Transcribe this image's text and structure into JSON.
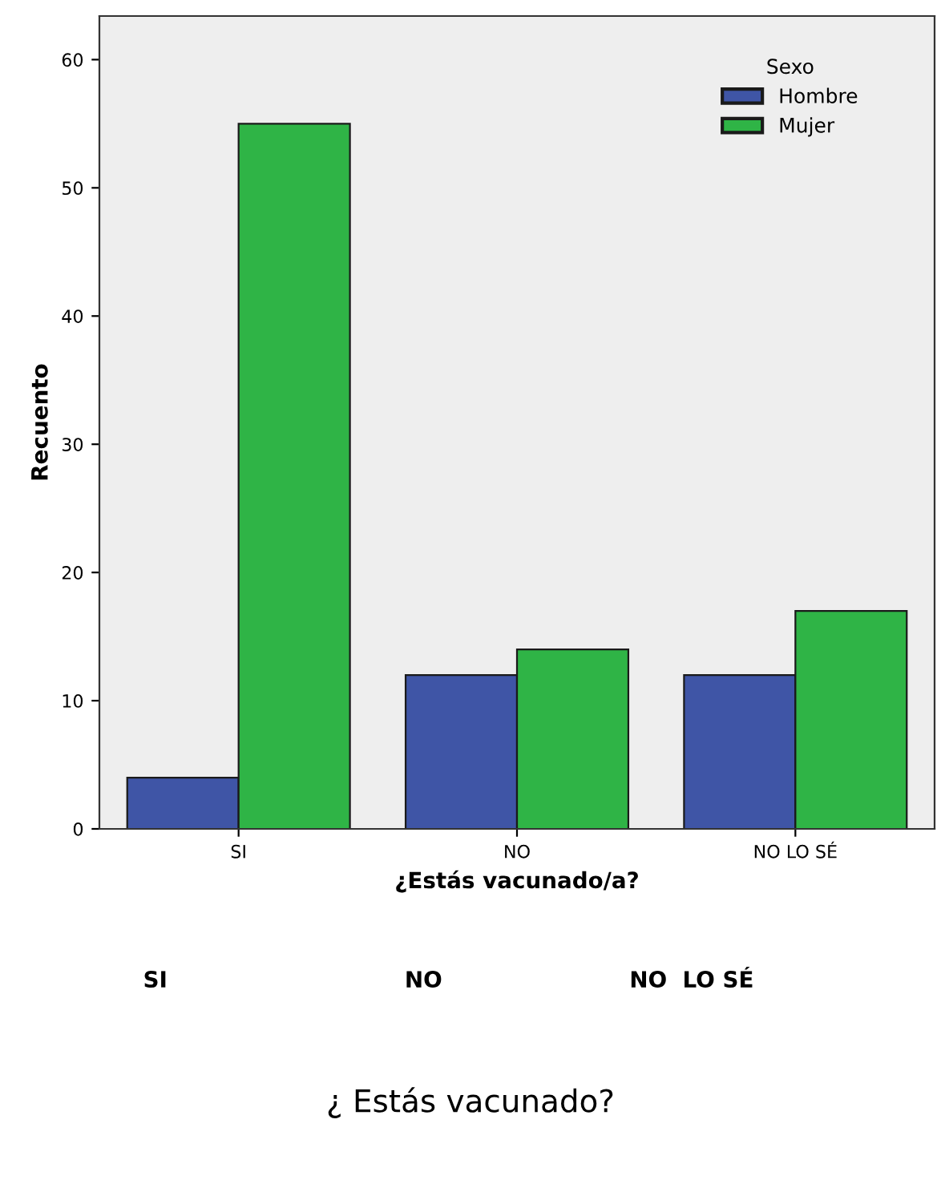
{
  "chart_data": {
    "type": "bar",
    "xlabel": "¿Estás vacunado/a?",
    "ylabel": "Recuento",
    "legend_title": "Sexo",
    "categories": [
      "SI",
      "NO",
      "NO LO SÉ"
    ],
    "series": [
      {
        "name": "Hombre",
        "color": "#3f55a6",
        "values": [
          4,
          12,
          12
        ]
      },
      {
        "name": "Mujer",
        "color": "#2fb446",
        "values": [
          55,
          14,
          17
        ]
      }
    ],
    "ylim": [
      0,
      63.4
    ],
    "yticks": [
      0,
      10,
      20,
      30,
      40,
      50,
      60
    ],
    "grid": false,
    "legend": "top right",
    "annotations": [
      "SI",
      "NO",
      "NO  LO SÉ",
      "¿ Estás vacunado?"
    ]
  }
}
